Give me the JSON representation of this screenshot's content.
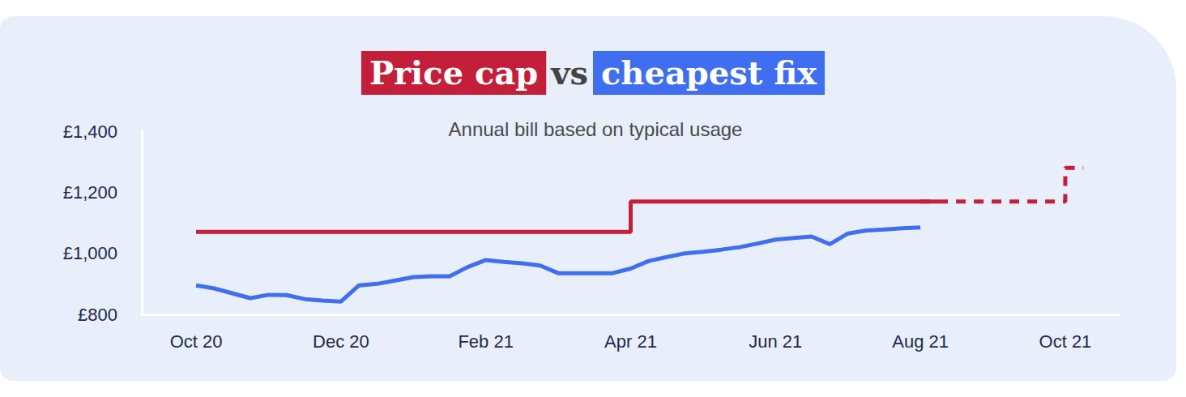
{
  "chart_data": {
    "type": "line",
    "title": "Price cap vs cheapest fix",
    "subtitle": "Annual bill based on typical usage",
    "categories": [
      null,
      null,
      null,
      "Oct 20",
      null,
      null,
      null,
      null,
      null,
      null,
      null,
      "Dec 20",
      null,
      null,
      null,
      null,
      null,
      null,
      null,
      "Feb 21",
      null,
      null,
      null,
      null,
      null,
      null,
      null,
      "Apr 21",
      null,
      null,
      null,
      null,
      null,
      null,
      null,
      "Jun 21",
      null,
      null,
      null,
      null,
      null,
      null,
      null,
      "Aug 21",
      null,
      null,
      null,
      null,
      null,
      null,
      null,
      "Oct 21",
      null,
      null,
      null
    ],
    "series": [
      {
        "name": "Price cap",
        "type": "step",
        "color": "#c41f3a",
        "line_style": "solid",
        "values": [
          null,
          null,
          null,
          1070,
          1070,
          1070,
          1070,
          1070,
          1070,
          1070,
          1070,
          1070,
          1070,
          1070,
          1070,
          1070,
          1070,
          1070,
          1070,
          1070,
          1070,
          1070,
          1070,
          1070,
          1070,
          1070,
          1070,
          1170,
          1170,
          1170,
          1170,
          1170,
          1170,
          1170,
          1170,
          1170,
          1170,
          1170,
          1170,
          1170,
          1170,
          1170,
          1170,
          1170,
          null,
          null,
          null,
          null,
          null,
          null,
          null,
          null,
          null,
          null,
          null
        ]
      },
      {
        "name": "Price cap",
        "type": "step",
        "color": "#c41f3a",
        "line_style": "dashed",
        "values": [
          null,
          null,
          null,
          null,
          null,
          null,
          null,
          null,
          null,
          null,
          null,
          null,
          null,
          null,
          null,
          null,
          null,
          null,
          null,
          null,
          null,
          null,
          null,
          null,
          null,
          null,
          null,
          null,
          null,
          null,
          null,
          null,
          null,
          null,
          null,
          null,
          null,
          null,
          null,
          null,
          null,
          null,
          null,
          1170,
          1170,
          1170,
          1170,
          1170,
          1170,
          1170,
          1170,
          1280,
          null,
          null,
          null
        ]
      },
      {
        "name": "cheapest fix",
        "type": "line",
        "color": "#3f6ff0",
        "line_style": "solid",
        "values": [
          null,
          null,
          null,
          895,
          885,
          869,
          853,
          864,
          863,
          850,
          845,
          842,
          895,
          900,
          911,
          922,
          925,
          925,
          955,
          978,
          972,
          967,
          960,
          935,
          935,
          935,
          935,
          950,
          975,
          988,
          1000,
          1005,
          1012,
          1020,
          1032,
          1045,
          1050,
          1055,
          1030,
          1065,
          1075,
          1078,
          1082,
          1085,
          null,
          null,
          null,
          null,
          null,
          null,
          null,
          null,
          null,
          null,
          null
        ]
      }
    ],
    "ylim": [
      800,
      1400
    ],
    "yticks": [
      {
        "value": 800,
        "label": "£800"
      },
      {
        "value": 1000,
        "label": "£1,000"
      },
      {
        "value": 1200,
        "label": "£1,200"
      },
      {
        "value": 1400,
        "label": "£1,400"
      }
    ],
    "grid": false
  }
}
